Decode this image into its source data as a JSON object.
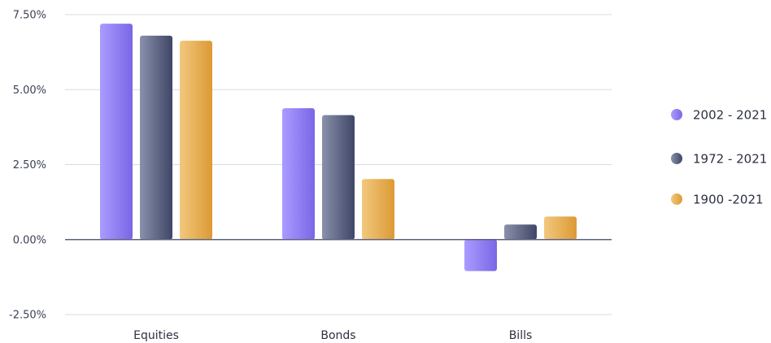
{
  "chart_data": {
    "type": "bar",
    "categories": [
      "Equities",
      "Bonds",
      "Bills"
    ],
    "series": [
      {
        "name": "2002 - 2021",
        "values": [
          7.2,
          4.38,
          -1.05
        ],
        "color": "#8b7cf2"
      },
      {
        "name": "1972 - 2021",
        "values": [
          6.8,
          4.15,
          0.5
        ],
        "color": "#52597a"
      },
      {
        "name": "1900 -2021",
        "values": [
          6.63,
          2.02,
          0.77
        ],
        "color": "#e6a84a"
      }
    ],
    "ylim": [
      -2.5,
      7.5
    ],
    "yticks": [
      7.5,
      5.0,
      2.5,
      0.0,
      -2.5
    ],
    "ytick_labels": [
      "7.50%",
      "5.00%",
      "2.50%",
      "0.00%",
      "-2.50%"
    ],
    "grid": true,
    "legend_position": "right"
  }
}
